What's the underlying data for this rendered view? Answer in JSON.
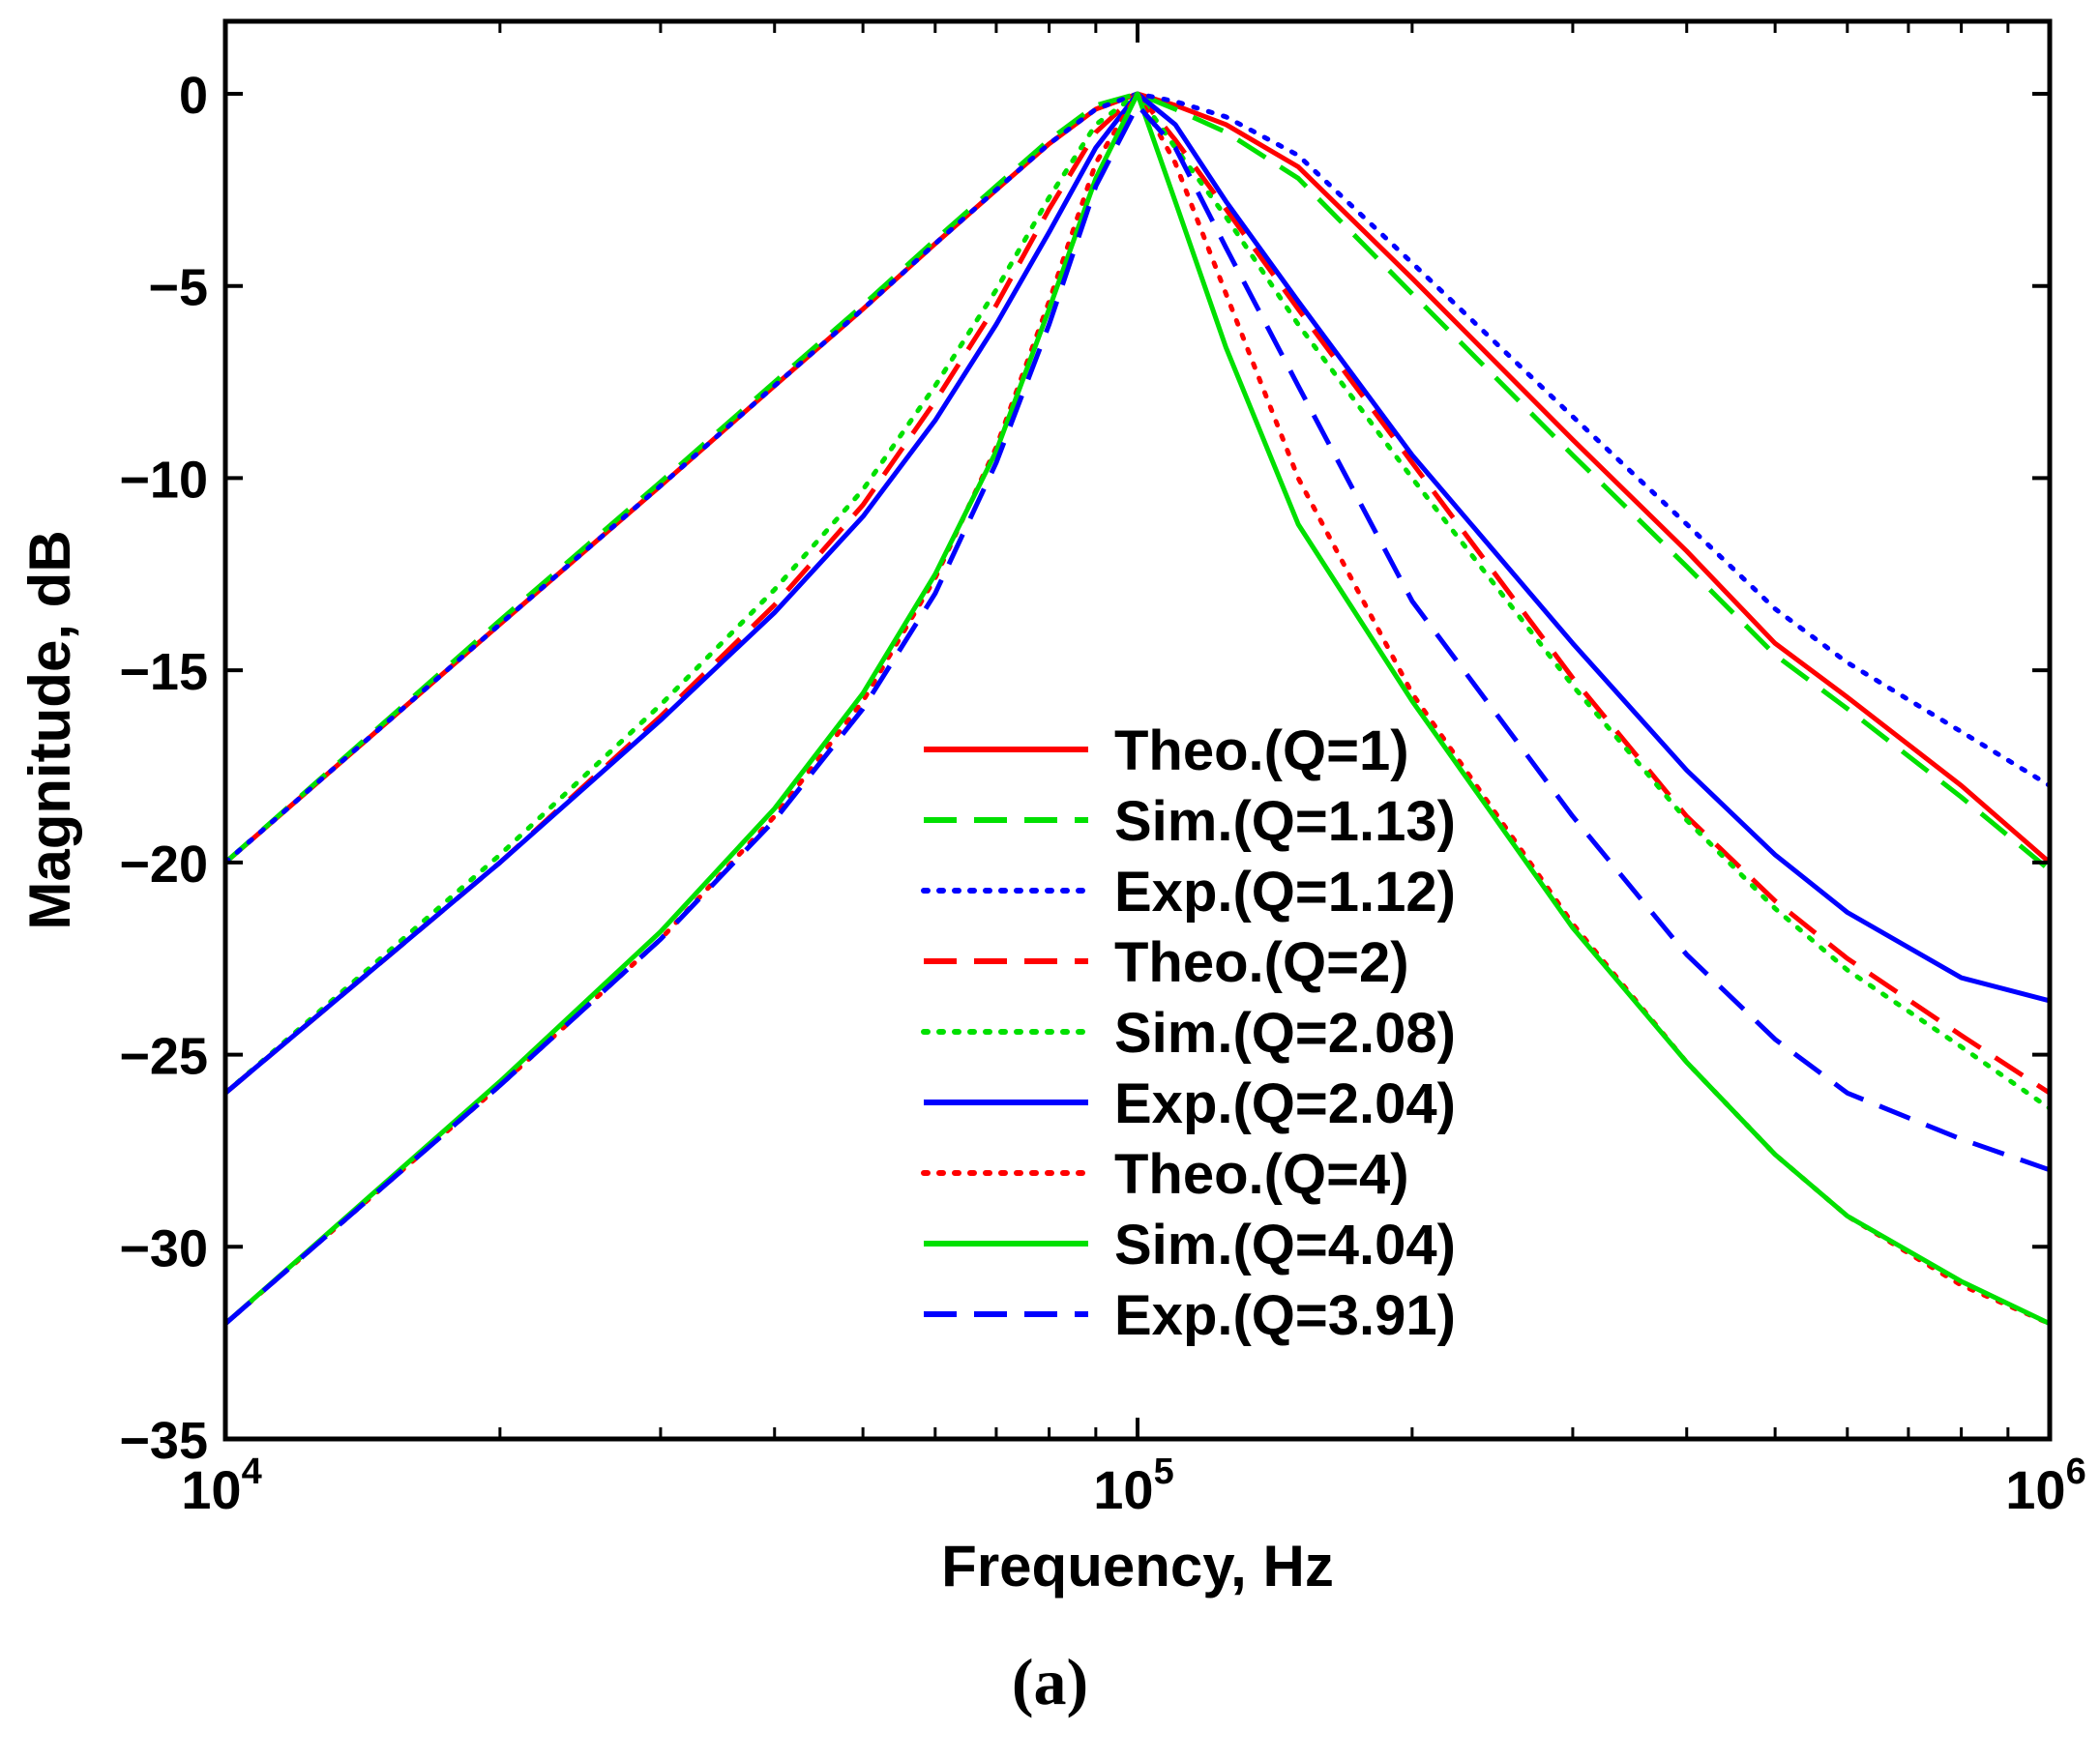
{
  "caption": "(a)",
  "chart_data": {
    "type": "line",
    "title": "",
    "xlabel": "Frequency, Hz",
    "ylabel": "Magnitude, dB",
    "xscale": "log",
    "xlim": [
      10000,
      1000000
    ],
    "ylim": [
      -35,
      0
    ],
    "xticks": [
      {
        "value": 10000,
        "base": "10",
        "exp": "4"
      },
      {
        "value": 100000,
        "base": "10",
        "exp": "5"
      },
      {
        "value": 1000000,
        "base": "10",
        "exp": "6"
      }
    ],
    "yticks": [
      {
        "value": 0,
        "label": "0"
      },
      {
        "value": -5,
        "label": "−5"
      },
      {
        "value": -10,
        "label": "−10"
      },
      {
        "value": -15,
        "label": "−15"
      },
      {
        "value": -20,
        "label": "−20"
      },
      {
        "value": -25,
        "label": "−25"
      },
      {
        "value": -30,
        "label": "−30"
      },
      {
        "value": -35,
        "label": "−35"
      }
    ],
    "grid": false,
    "legend_position": "center-bottom",
    "x": [
      10000,
      20000,
      30000,
      40000,
      50000,
      60000,
      70000,
      80000,
      90000,
      100000,
      110000,
      125000,
      150000,
      200000,
      300000,
      400000,
      500000,
      600000,
      800000,
      1000000
    ],
    "series": [
      {
        "name": "Theo.(Q=1)",
        "color": "#ff0000",
        "dash": "solid",
        "values": [
          -20.0,
          -13.8,
          -10.2,
          -7.6,
          -5.6,
          -3.9,
          -2.5,
          -1.3,
          -0.4,
          0.0,
          -0.3,
          -0.8,
          -1.9,
          -4.8,
          -9.0,
          -11.9,
          -14.3,
          -15.7,
          -18.0,
          -20.0
        ]
      },
      {
        "name": "Sim.(Q=1.13)",
        "color": "#00e000",
        "dash": "dashed",
        "values": [
          -20.0,
          -13.7,
          -10.1,
          -7.5,
          -5.5,
          -3.8,
          -2.4,
          -1.2,
          -0.3,
          0.0,
          -0.4,
          -1.0,
          -2.2,
          -5.2,
          -9.4,
          -12.3,
          -14.6,
          -16.0,
          -18.3,
          -20.2
        ]
      },
      {
        "name": "Exp.(Q=1.12)",
        "color": "#0000ff",
        "dash": "dotted",
        "values": [
          -20.0,
          -13.8,
          -10.2,
          -7.6,
          -5.6,
          -3.9,
          -2.5,
          -1.3,
          -0.4,
          0.0,
          -0.2,
          -0.6,
          -1.6,
          -4.4,
          -8.4,
          -11.2,
          -13.4,
          -14.8,
          -16.6,
          -18.0
        ]
      },
      {
        "name": "Theo.(Q=2)",
        "color": "#ff0000",
        "dash": "dashed",
        "values": [
          -26.0,
          -20.0,
          -16.2,
          -13.3,
          -10.7,
          -8.0,
          -5.5,
          -3.0,
          -1.0,
          0.0,
          -1.2,
          -3.0,
          -5.6,
          -9.6,
          -15.2,
          -18.8,
          -21.0,
          -22.5,
          -24.5,
          -26.0
        ]
      },
      {
        "name": "Sim.(Q=2.08)",
        "color": "#00e000",
        "dash": "dotted",
        "values": [
          -26.0,
          -19.8,
          -15.9,
          -12.9,
          -10.3,
          -7.6,
          -5.1,
          -2.7,
          -0.8,
          0.0,
          -1.4,
          -3.2,
          -6.0,
          -10.0,
          -15.4,
          -18.9,
          -21.2,
          -22.8,
          -24.8,
          -26.4
        ]
      },
      {
        "name": "Exp.(Q=2.04)",
        "color": "#0000ff",
        "dash": "solid",
        "values": [
          -26.0,
          -20.0,
          -16.3,
          -13.5,
          -11.0,
          -8.5,
          -6.0,
          -3.6,
          -1.4,
          0.0,
          -0.8,
          -2.8,
          -5.4,
          -9.4,
          -14.3,
          -17.6,
          -19.8,
          -21.3,
          -23.0,
          -23.6
        ]
      },
      {
        "name": "Theo.(Q=4)",
        "color": "#ff0000",
        "dash": "dotted",
        "values": [
          -32.0,
          -25.8,
          -22.0,
          -18.8,
          -15.8,
          -12.6,
          -9.2,
          -5.4,
          -1.8,
          0.0,
          -1.8,
          -5.2,
          -10.0,
          -15.6,
          -21.6,
          -25.2,
          -27.6,
          -29.2,
          -31.0,
          -32.0
        ]
      },
      {
        "name": "Sim.(Q=4.04)",
        "color": "#00e000",
        "dash": "solid",
        "values": [
          -32.0,
          -25.7,
          -21.8,
          -18.6,
          -15.6,
          -12.5,
          -9.3,
          -5.6,
          -2.2,
          0.0,
          -2.8,
          -6.6,
          -11.2,
          -15.8,
          -21.7,
          -25.2,
          -27.6,
          -29.2,
          -30.9,
          -32.0
        ]
      },
      {
        "name": "Exp.(Q=3.91)",
        "color": "#0000ff",
        "dash": "dashed",
        "values": [
          -32.0,
          -25.8,
          -22.0,
          -18.9,
          -16.0,
          -13.0,
          -9.6,
          -6.0,
          -2.4,
          -0.3,
          -1.4,
          -4.0,
          -7.6,
          -13.2,
          -18.8,
          -22.4,
          -24.6,
          -26.0,
          -27.2,
          -28.0
        ]
      }
    ]
  }
}
